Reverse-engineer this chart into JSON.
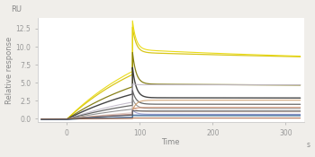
{
  "title": "RU",
  "xlabel": "Time",
  "xlabel_suffix": "s",
  "ylabel": "Relative response",
  "xlim": [
    -40,
    325
  ],
  "ylim": [
    -0.5,
    14
  ],
  "yticks": [
    0,
    2.5,
    5.0,
    7.5,
    10.0,
    12.5
  ],
  "xticks": [
    0,
    100,
    200,
    300
  ],
  "background_color": "#ffffff",
  "fig_background": "#f0eeea",
  "association_start": 0,
  "association_end": 90,
  "dissociation_end": 320,
  "pre_start": -35,
  "curves": [
    {
      "color": "#d4c000",
      "assoc_peak": 12.7,
      "dissoc_drop": 9.2,
      "dissoc_end": 7.3,
      "lw": 0.9,
      "pre": -0.1,
      "tau_d": 600
    },
    {
      "color": "#e8d800",
      "assoc_peak": 13.6,
      "dissoc_drop": 9.6,
      "dissoc_end": 7.5,
      "lw": 0.8,
      "pre": -0.1,
      "tau_d": 400
    },
    {
      "color": "#7a7200",
      "assoc_peak": 9.2,
      "dissoc_drop": 4.8,
      "dissoc_end": 4.2,
      "lw": 0.9,
      "pre": -0.1,
      "tau_d": 800
    },
    {
      "color": "#303030",
      "assoc_peak": 7.1,
      "dissoc_drop": 2.9,
      "dissoc_end": 2.7,
      "lw": 1.0,
      "pre": -0.1,
      "tau_d": 1200
    },
    {
      "color": "#c0b8c8",
      "assoc_peak": 4.8,
      "dissoc_drop": 4.7,
      "dissoc_end": 4.6,
      "lw": 0.8,
      "pre": -0.1,
      "tau_d": 2000
    },
    {
      "color": "#585858",
      "assoc_peak": 3.9,
      "dissoc_drop": 2.0,
      "dissoc_end": 1.9,
      "lw": 0.9,
      "pre": -0.1,
      "tau_d": 1500
    },
    {
      "color": "#888888",
      "assoc_peak": 2.8,
      "dissoc_drop": 1.4,
      "dissoc_end": 1.35,
      "lw": 0.8,
      "pre": -0.1,
      "tau_d": 1800
    },
    {
      "color": "#d8c0b8",
      "assoc_peak": 1.75,
      "dissoc_drop": 0.95,
      "dissoc_end": 0.9,
      "lw": 0.8,
      "pre": -0.1,
      "tau_d": 2000
    },
    {
      "color": "#cc8866",
      "assoc_peak": 1.3,
      "dissoc_drop": 1.55,
      "dissoc_end": 1.65,
      "lw": 0.8,
      "pre": -0.05,
      "tau_d": 5000
    },
    {
      "color": "#cc9966",
      "assoc_peak": 1.1,
      "dissoc_drop": 2.55,
      "dissoc_end": 2.65,
      "lw": 0.8,
      "pre": -0.05,
      "tau_d": 5000
    },
    {
      "color": "#9999cc",
      "assoc_peak": 1.2,
      "dissoc_drop": 0.6,
      "dissoc_end": 0.55,
      "lw": 0.8,
      "pre": -0.1,
      "tau_d": 2000
    },
    {
      "color": "#4466aa",
      "assoc_peak": 0.5,
      "dissoc_drop": 0.5,
      "dissoc_end": 0.48,
      "lw": 0.8,
      "pre": -0.1,
      "tau_d": 3000
    },
    {
      "color": "#336688",
      "assoc_peak": 0.4,
      "dissoc_drop": 0.38,
      "dissoc_end": 0.35,
      "lw": 0.7,
      "pre": -0.1,
      "tau_d": 3000
    },
    {
      "color": "#aa6644",
      "assoc_peak": 0.08,
      "dissoc_drop": 0.07,
      "dissoc_end": 0.06,
      "lw": 0.8,
      "pre": -0.05,
      "tau_d": 3000
    },
    {
      "color": "#505050",
      "assoc_peak": 1.1,
      "dissoc_drop": 1.05,
      "dissoc_end": 1.0,
      "lw": 0.8,
      "pre": -0.1,
      "tau_d": 2500
    }
  ]
}
